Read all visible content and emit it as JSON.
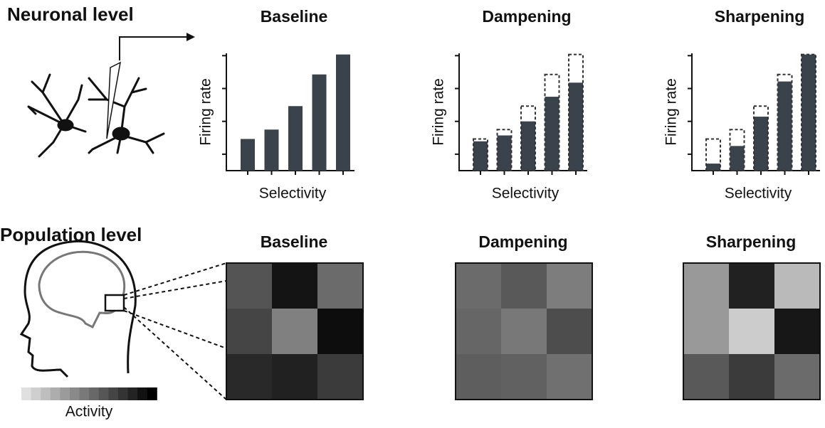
{
  "neuronal": {
    "title": "Neuronal level",
    "ylim": [
      0,
      100
    ],
    "yticks": [
      14,
      42,
      70,
      98
    ],
    "panels": [
      {
        "title": "Baseline",
        "ylabel": "Firing rate",
        "xlabel": "Selectivity",
        "values": [
          27,
          35,
          55,
          82,
          99
        ]
      },
      {
        "title": "Dampening",
        "ylabel": "Firing rate",
        "xlabel": "Selectivity",
        "values": [
          25,
          30,
          42,
          63,
          75
        ],
        "reference": [
          27,
          35,
          55,
          82,
          99
        ]
      },
      {
        "title": "Sharpening",
        "ylabel": "Firing rate",
        "xlabel": "Selectivity",
        "values": [
          6,
          21,
          46,
          76,
          99
        ],
        "reference": [
          27,
          35,
          55,
          82,
          99
        ]
      }
    ]
  },
  "population": {
    "title": "Population level",
    "colorbar_label": "Activity",
    "activity_range": [
      0,
      1
    ],
    "panels": [
      {
        "title": "Baseline",
        "cells": [
          [
            0.67,
            0.92,
            0.58
          ],
          [
            0.73,
            0.5,
            0.95
          ],
          [
            0.84,
            0.87,
            0.77
          ]
        ]
      },
      {
        "title": "Dampening",
        "cells": [
          [
            0.58,
            0.65,
            0.51
          ],
          [
            0.6,
            0.53,
            0.7
          ],
          [
            0.63,
            0.62,
            0.56
          ]
        ]
      },
      {
        "title": "Sharpening",
        "cells": [
          [
            0.4,
            0.87,
            0.27
          ],
          [
            0.4,
            0.2,
            0.91
          ],
          [
            0.65,
            0.77,
            0.58
          ]
        ]
      }
    ]
  }
}
